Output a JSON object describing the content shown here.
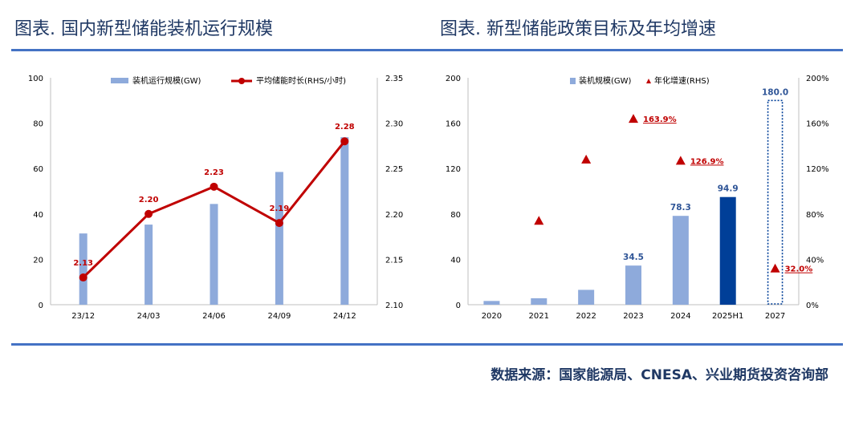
{
  "header": {
    "left_title": "图表. 国内新型储能装机运行规模",
    "right_title": "图表. 新型储能政策目标及年均增速"
  },
  "footer": {
    "source": "数据来源：国家能源局、CNESA、兴业期货投资咨询部"
  },
  "colors": {
    "bar": "#8eaadb",
    "bar_highlight": "#003f98",
    "line": "#c00000",
    "title": "#1f3864",
    "rule": "#4472c4",
    "axis_text": "#000000"
  },
  "chart_data": [
    {
      "type": "bar",
      "categories": [
        "23/12",
        "24/03",
        "24/06",
        "24/09",
        "24/12"
      ],
      "series": [
        {
          "name": "装机运行规模(GW)",
          "type": "bar",
          "axis": "left",
          "values": [
            31.4,
            35.3,
            44.4,
            58.5,
            73.8
          ]
        },
        {
          "name": "平均储能时长(RHS/小时)",
          "type": "line",
          "axis": "right",
          "values": [
            2.13,
            2.2,
            2.23,
            2.19,
            2.28
          ],
          "labels": [
            "2.13",
            "2.20",
            "2.23",
            "2.19",
            "2.28"
          ]
        }
      ],
      "left_axis": {
        "min": 0,
        "max": 100,
        "ticks": [
          "0",
          "20",
          "40",
          "60",
          "80",
          "100"
        ]
      },
      "right_axis": {
        "min": 2.1,
        "max": 2.35,
        "ticks": [
          "2.10",
          "2.15",
          "2.20",
          "2.25",
          "2.30",
          "2.35"
        ]
      },
      "legend": "top-center",
      "grid": false
    },
    {
      "type": "bar",
      "categories": [
        "2020",
        "2021",
        "2022",
        "2023",
        "2024",
        "2025H1",
        "2027"
      ],
      "series": [
        {
          "name": "装机规模(GW)",
          "type": "bar",
          "axis": "left",
          "values": [
            3.3,
            5.7,
            13.1,
            34.5,
            78.3,
            94.9,
            180.0
          ],
          "labels": [
            "",
            "",
            "",
            "34.5",
            "78.3",
            "94.9",
            "180.0"
          ],
          "highlight_index": 5,
          "target_index": 6
        },
        {
          "name": "年化增速(RHS)",
          "type": "scatter",
          "axis": "right",
          "values": [
            null,
            74.0,
            128.0,
            163.9,
            126.9,
            null,
            32.0
          ],
          "labels": [
            "",
            "",
            "",
            "163.9%",
            "126.9%",
            "",
            "32.0%"
          ]
        }
      ],
      "left_axis": {
        "min": 0,
        "max": 200,
        "ticks": [
          "0",
          "40",
          "80",
          "120",
          "160",
          "200"
        ]
      },
      "right_axis": {
        "min": 0,
        "max": 200,
        "ticks": [
          "0%",
          "40%",
          "80%",
          "120%",
          "160%",
          "200%"
        ]
      },
      "legend": "top-center",
      "grid": false
    }
  ]
}
